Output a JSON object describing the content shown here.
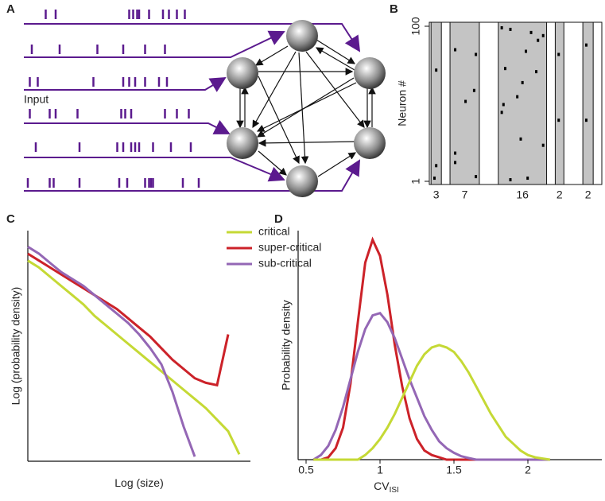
{
  "panel_labels": [
    "A",
    "B",
    "C",
    "D"
  ],
  "network": {
    "input_label": "Input",
    "spike_times": [
      [
        11,
        16,
        53,
        55,
        57,
        58,
        63,
        70,
        73,
        77,
        81
      ],
      [
        4,
        18,
        37,
        50,
        61,
        71
      ],
      [
        3,
        7,
        35,
        50,
        53,
        56,
        61,
        68,
        72
      ],
      [
        3,
        13,
        16,
        27,
        49,
        51,
        54,
        71,
        77,
        83
      ],
      [
        6,
        28,
        47,
        50,
        54,
        56,
        58,
        65,
        74,
        84
      ],
      [
        2,
        13,
        15,
        28,
        48,
        52,
        61,
        63,
        64,
        65,
        80,
        88
      ]
    ]
  },
  "raster": {
    "ylabel": "Neuron #",
    "ylim": [
      1,
      100
    ],
    "yticks": [
      1,
      100
    ],
    "xlim": [
      0,
      100
    ],
    "bands": [
      {
        "start": 1,
        "end": 7,
        "count": 3,
        "neurons": [
          72,
          11,
          3
        ],
        "times": [
          4,
          4,
          3
        ]
      },
      {
        "start": 12,
        "end": 29,
        "count": 7,
        "neurons": [
          85,
          82,
          59,
          52,
          19,
          13,
          4
        ],
        "times": [
          15,
          27,
          26,
          21,
          15,
          15,
          27
        ]
      },
      {
        "start": 40,
        "end": 68,
        "count": 16,
        "neurons": [
          99,
          98,
          96,
          94,
          91,
          84,
          73,
          71,
          64,
          55,
          50,
          45,
          28,
          24,
          3,
          2
        ],
        "times": [
          42,
          47,
          59,
          66,
          63,
          56,
          44,
          62,
          54,
          51,
          43,
          42,
          53,
          66,
          57,
          47
        ]
      },
      {
        "start": 73,
        "end": 78,
        "count": 2,
        "neurons": [
          82,
          40
        ],
        "times": [
          75,
          75
        ]
      },
      {
        "start": 89,
        "end": 95,
        "count": 2,
        "neurons": [
          88,
          40
        ],
        "times": [
          91,
          91
        ]
      }
    ]
  },
  "chart_data": [
    {
      "type": "line",
      "ylabel": "Log (probability density)",
      "xlabel": "Log (size)",
      "x": [
        0,
        0.05,
        0.1,
        0.15,
        0.2,
        0.25,
        0.3,
        0.35,
        0.4,
        0.45,
        0.5,
        0.55,
        0.6,
        0.65,
        0.7,
        0.75,
        0.8,
        0.85,
        0.9,
        0.95
      ],
      "xlim": [
        0,
        1
      ],
      "ylim": [
        0,
        1
      ],
      "legend": "upper right",
      "series": [
        {
          "name": "critical",
          "color": "#c5d935",
          "values": [
            0.87,
            0.84,
            0.8,
            0.76,
            0.72,
            0.68,
            0.63,
            0.59,
            0.55,
            0.51,
            0.47,
            0.43,
            0.39,
            0.35,
            0.31,
            0.27,
            0.23,
            0.18,
            0.13,
            0.03
          ]
        },
        {
          "name": "super-critical",
          "color": "#cc2229",
          "values": [
            0.9,
            0.87,
            0.84,
            0.81,
            0.78,
            0.75,
            0.72,
            0.69,
            0.66,
            0.62,
            0.58,
            0.54,
            0.49,
            0.44,
            0.4,
            0.36,
            0.34,
            0.33,
            0.55,
            null
          ]
        },
        {
          "name": "sub-critical",
          "color": "#9467b5",
          "values": [
            0.93,
            0.9,
            0.86,
            0.82,
            0.79,
            0.76,
            0.72,
            0.68,
            0.64,
            0.6,
            0.55,
            0.49,
            0.42,
            0.3,
            0.15,
            0.02,
            null,
            null,
            null,
            null
          ]
        }
      ]
    },
    {
      "type": "line",
      "ylabel": "Probability density",
      "xlabel": "CV",
      "xlabel_sub": "ISI",
      "x": [
        0.55,
        0.6,
        0.65,
        0.7,
        0.75,
        0.8,
        0.85,
        0.9,
        0.95,
        1.0,
        1.05,
        1.1,
        1.15,
        1.2,
        1.25,
        1.3,
        1.35,
        1.4,
        1.45,
        1.5,
        1.55,
        1.6,
        1.65,
        1.7,
        1.75,
        1.8,
        1.85,
        1.9,
        1.95,
        2.0,
        2.05,
        2.1,
        2.15
      ],
      "xlim": [
        0.5,
        2.5
      ],
      "xticks": [
        0.5,
        1,
        1.5,
        2
      ],
      "ylim": [
        0,
        1
      ],
      "series": [
        {
          "color": "#cc2229",
          "values": [
            0,
            0,
            0.01,
            0.05,
            0.14,
            0.33,
            0.6,
            0.86,
            0.96,
            0.89,
            0.72,
            0.5,
            0.32,
            0.18,
            0.09,
            0.04,
            0.02,
            0.01,
            0,
            0,
            0,
            0,
            0,
            0,
            0,
            0,
            0,
            0,
            0,
            0,
            0,
            0,
            0
          ]
        },
        {
          "color": "#9467b5",
          "values": [
            0,
            0.02,
            0.06,
            0.13,
            0.23,
            0.35,
            0.47,
            0.57,
            0.63,
            0.64,
            0.6,
            0.53,
            0.44,
            0.35,
            0.27,
            0.19,
            0.13,
            0.08,
            0.05,
            0.03,
            0.015,
            0.007,
            0,
            0,
            0,
            0,
            0,
            0,
            0,
            0,
            0,
            0,
            0
          ]
        },
        {
          "color": "#c5d935",
          "values": [
            0,
            0,
            0,
            0,
            0,
            0,
            0,
            0.02,
            0.05,
            0.09,
            0.14,
            0.2,
            0.27,
            0.34,
            0.41,
            0.46,
            0.49,
            0.5,
            0.49,
            0.47,
            0.43,
            0.38,
            0.32,
            0.26,
            0.2,
            0.15,
            0.1,
            0.07,
            0.04,
            0.02,
            0.01,
            0.005,
            0
          ]
        }
      ]
    }
  ]
}
